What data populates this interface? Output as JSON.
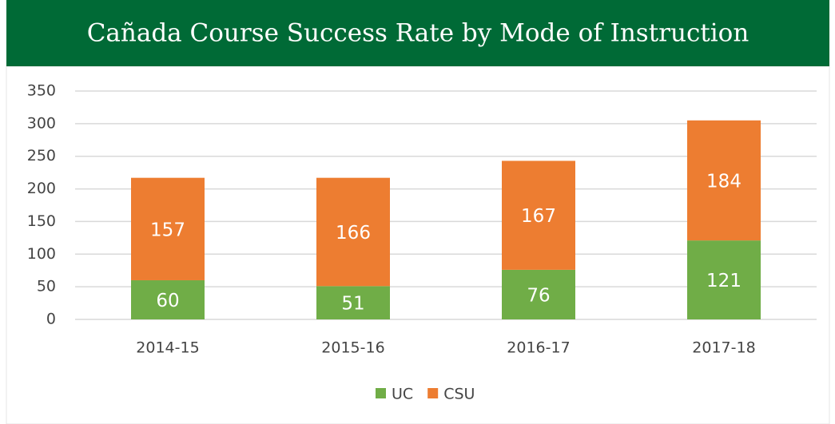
{
  "chart_data": {
    "type": "stacked_bar",
    "title": "Cañada Course Success Rate by Mode of Instruction",
    "categories": [
      "2014-15",
      "2015-16",
      "2016-17",
      "2017-18"
    ],
    "series": [
      {
        "name": "UC",
        "color": "#70ad47",
        "values": [
          60,
          51,
          76,
          121
        ]
      },
      {
        "name": "CSU",
        "color": "#ed7d31",
        "values": [
          157,
          166,
          167,
          184
        ]
      }
    ],
    "ylim": [
      0,
      350
    ],
    "yticks": [
      0,
      50,
      100,
      150,
      200,
      250,
      300,
      350
    ],
    "grid": true,
    "legend": "bottom"
  }
}
